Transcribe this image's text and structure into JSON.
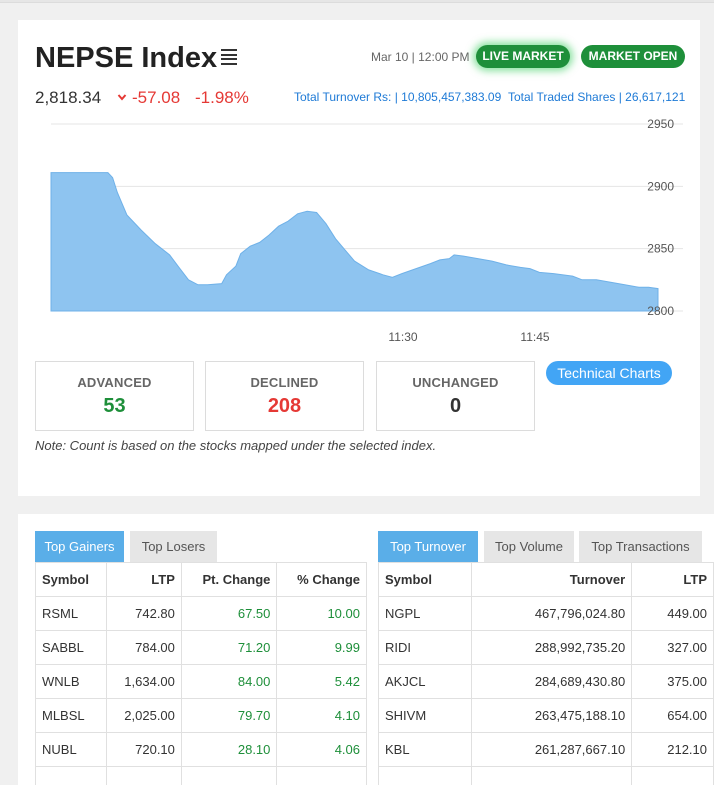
{
  "index": {
    "title": "NEPSE Index",
    "datetime": "Mar 10 | 12:00 PM",
    "live_label": "LIVE MARKET",
    "open_label": "MARKET OPEN",
    "value": "2,818.34",
    "change": "-57.08",
    "pct": "-1.98%",
    "turnover": "Total Turnover Rs: | 10,805,457,383.09",
    "shares": "Total Traded Shares | 26,617,121"
  },
  "chart_data": {
    "type": "area",
    "ylim": [
      2800,
      2950
    ],
    "yticks": [
      "2950",
      "2900",
      "2850",
      "2800"
    ],
    "xticks": [
      "11:30",
      "11:45"
    ],
    "points": [
      [
        0,
        2911
      ],
      [
        2,
        2911
      ],
      [
        6,
        2911
      ],
      [
        10,
        2911
      ],
      [
        12,
        2911
      ],
      [
        13,
        2907
      ],
      [
        14,
        2895
      ],
      [
        16,
        2877
      ],
      [
        19,
        2865
      ],
      [
        22,
        2854
      ],
      [
        25,
        2845
      ],
      [
        27,
        2835
      ],
      [
        29,
        2825
      ],
      [
        31,
        2821
      ],
      [
        33,
        2821
      ],
      [
        36,
        2822
      ],
      [
        37,
        2829
      ],
      [
        39,
        2836
      ],
      [
        40,
        2846
      ],
      [
        42,
        2852
      ],
      [
        44,
        2855
      ],
      [
        46,
        2861
      ],
      [
        48,
        2868
      ],
      [
        50,
        2872
      ],
      [
        52,
        2878
      ],
      [
        54,
        2880
      ],
      [
        56,
        2879
      ],
      [
        58,
        2870
      ],
      [
        60,
        2858
      ],
      [
        62,
        2849
      ],
      [
        64,
        2840
      ],
      [
        67,
        2833
      ],
      [
        70,
        2829
      ],
      [
        72,
        2827
      ],
      [
        74,
        2830
      ],
      [
        77,
        2834
      ],
      [
        80,
        2838
      ],
      [
        82,
        2841
      ],
      [
        84,
        2842
      ],
      [
        85,
        2845
      ],
      [
        87,
        2844
      ],
      [
        90,
        2842
      ],
      [
        93,
        2840
      ],
      [
        96,
        2837
      ],
      [
        99,
        2835
      ],
      [
        101,
        2834
      ],
      [
        103,
        2831
      ],
      [
        106,
        2830
      ],
      [
        110,
        2828
      ],
      [
        112,
        2825
      ],
      [
        115,
        2825
      ],
      [
        118,
        2823
      ],
      [
        121,
        2821
      ],
      [
        124,
        2819
      ],
      [
        126,
        2819
      ],
      [
        128,
        2818
      ]
    ]
  },
  "stats": {
    "advanced_label": "ADVANCED",
    "advanced": "53",
    "declined_label": "DECLINED",
    "declined": "208",
    "unchanged_label": "UNCHANGED",
    "unchanged": "0"
  },
  "tech_charts_label": "Technical Charts",
  "note": "Note: Count is based on the stocks mapped under the selected index.",
  "left_tabs": [
    "Top Gainers",
    "Top Losers"
  ],
  "right_tabs": [
    "Top Turnover",
    "Top Volume",
    "Top Transactions"
  ],
  "gainers": {
    "headers": [
      "Symbol",
      "LTP",
      "Pt. Change",
      "% Change"
    ],
    "rows": [
      [
        "RSML",
        "742.80",
        "67.50",
        "10.00"
      ],
      [
        "SABBL",
        "784.00",
        "71.20",
        "9.99"
      ],
      [
        "WNLB",
        "1,634.00",
        "84.00",
        "5.42"
      ],
      [
        "MLBSL",
        "2,025.00",
        "79.70",
        "4.10"
      ],
      [
        "NUBL",
        "720.10",
        "28.10",
        "4.06"
      ]
    ]
  },
  "turnover_table": {
    "headers": [
      "Symbol",
      "Turnover",
      "LTP"
    ],
    "rows": [
      [
        "NGPL",
        "467,796,024.80",
        "449.00"
      ],
      [
        "RIDI",
        "288,992,735.20",
        "327.00"
      ],
      [
        "AKJCL",
        "284,689,430.80",
        "375.00"
      ],
      [
        "SHIVM",
        "263,475,188.10",
        "654.00"
      ],
      [
        "KBL",
        "261,287,667.10",
        "212.10"
      ]
    ]
  },
  "colors": {
    "up": "#1e8f3a",
    "down": "#e53935",
    "accent": "#5aaee8",
    "area": "#8ec4f0"
  }
}
